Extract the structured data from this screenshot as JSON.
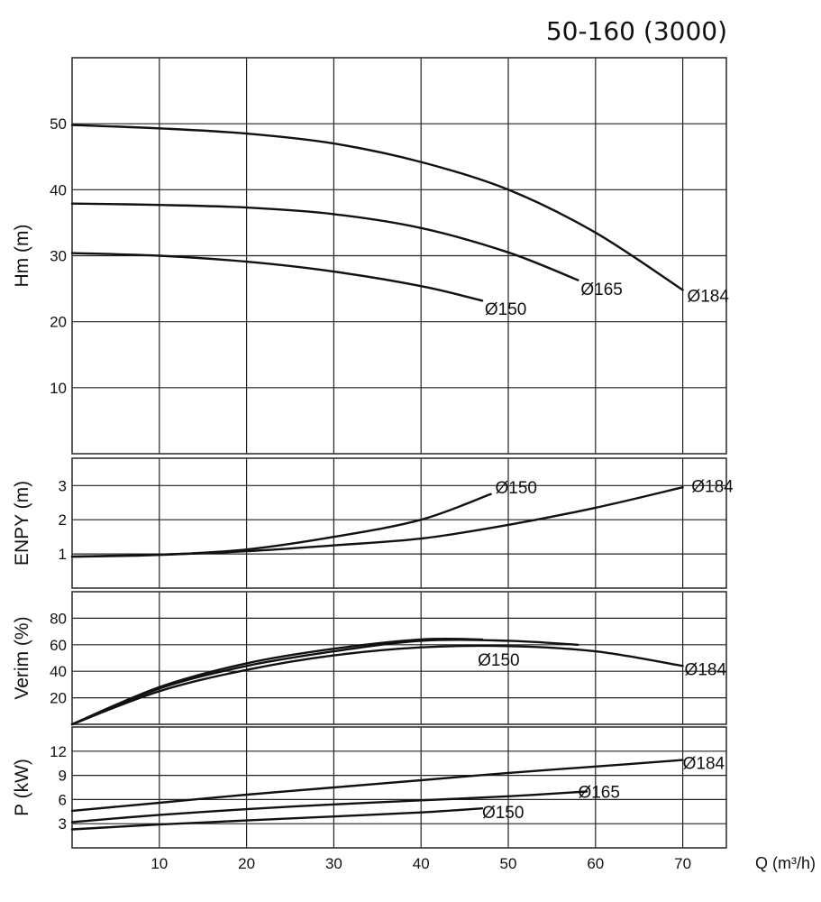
{
  "title": "50-160 (3000)",
  "chart_data": [
    {
      "type": "line",
      "ylabel": "Hm (m)",
      "xlim": [
        0,
        75
      ],
      "ylim": [
        0,
        60
      ],
      "xgrid": [
        10,
        20,
        30,
        40,
        50,
        60,
        70
      ],
      "ygrid": [
        10,
        20,
        30,
        40,
        50
      ],
      "yticks": [
        "10",
        "20",
        "30",
        "40",
        "50"
      ],
      "grid": true,
      "series": [
        {
          "name": "Ø184",
          "x": [
            0,
            10,
            20,
            30,
            40,
            50,
            60,
            70
          ],
          "y": [
            49.8,
            49.3,
            48.5,
            47,
            44.2,
            40,
            33.5,
            24.8
          ]
        },
        {
          "name": "Ø165",
          "x": [
            0,
            10,
            20,
            30,
            40,
            50,
            58
          ],
          "y": [
            37.9,
            37.7,
            37.3,
            36.3,
            34.2,
            30.5,
            26.3
          ]
        },
        {
          "name": "Ø150",
          "x": [
            0,
            10,
            20,
            30,
            40,
            47
          ],
          "y": [
            30.4,
            30,
            29.1,
            27.6,
            25.4,
            23.2
          ]
        }
      ]
    },
    {
      "type": "line",
      "ylabel": "ENPY (m)",
      "xlim": [
        0,
        75
      ],
      "ylim": [
        0,
        3.8
      ],
      "xgrid": [
        10,
        20,
        30,
        40,
        50,
        60,
        70
      ],
      "ygrid": [
        1,
        2,
        3
      ],
      "yticks": [
        "1",
        "2",
        "3"
      ],
      "grid": true,
      "series": [
        {
          "name": "Ø150",
          "x": [
            0,
            10,
            20,
            30,
            40,
            48
          ],
          "y": [
            0.92,
            0.97,
            1.13,
            1.5,
            2.0,
            2.75
          ]
        },
        {
          "name": "Ø184",
          "x": [
            0,
            10,
            20,
            30,
            40,
            50,
            60,
            70
          ],
          "y": [
            0.92,
            0.98,
            1.08,
            1.25,
            1.45,
            1.85,
            2.35,
            2.95
          ]
        }
      ]
    },
    {
      "type": "line",
      "ylabel": "Verim (%)",
      "xlim": [
        0,
        75
      ],
      "ylim": [
        0,
        100
      ],
      "xgrid": [
        10,
        20,
        30,
        40,
        50,
        60,
        70
      ],
      "ygrid": [
        20,
        40,
        60,
        80
      ],
      "yticks": [
        "20",
        "40",
        "60",
        "80"
      ],
      "grid": true,
      "series": [
        {
          "name": "Ø184",
          "x": [
            0,
            10,
            20,
            30,
            40,
            50,
            60,
            70
          ],
          "y": [
            0,
            25,
            41,
            52,
            58,
            59,
            55,
            44
          ]
        },
        {
          "name": "Ø165",
          "x": [
            0,
            10,
            20,
            30,
            40,
            50,
            58
          ],
          "y": [
            0,
            27,
            44,
            55,
            63,
            63,
            60
          ]
        },
        {
          "name": "Ø150",
          "x": [
            0,
            10,
            20,
            30,
            40,
            47
          ],
          "y": [
            0,
            28,
            46,
            57,
            64,
            64
          ]
        }
      ]
    },
    {
      "type": "line",
      "ylabel": "P (kW)",
      "xlabel": "Q (m³/h)",
      "xlim": [
        0,
        75
      ],
      "ylim": [
        0,
        15
      ],
      "xgrid": [
        10,
        20,
        30,
        40,
        50,
        60,
        70
      ],
      "ygrid": [
        3,
        6,
        9,
        12
      ],
      "yticks": [
        "3",
        "6",
        "9",
        "12"
      ],
      "xticks": [
        "10",
        "20",
        "30",
        "40",
        "50",
        "60",
        "70"
      ],
      "grid": true,
      "series": [
        {
          "name": "Ø184",
          "x": [
            0,
            10,
            20,
            30,
            40,
            50,
            60,
            70
          ],
          "y": [
            4.6,
            5.6,
            6.6,
            7.5,
            8.4,
            9.3,
            10.1,
            10.9
          ]
        },
        {
          "name": "Ø165",
          "x": [
            0,
            10,
            20,
            30,
            40,
            50,
            59
          ],
          "y": [
            3.2,
            4.1,
            4.8,
            5.4,
            5.9,
            6.4,
            7.0
          ]
        },
        {
          "name": "Ø150",
          "x": [
            0,
            10,
            20,
            30,
            40,
            47
          ],
          "y": [
            2.3,
            2.9,
            3.4,
            3.9,
            4.4,
            4.9
          ]
        }
      ]
    }
  ],
  "curve_labels": [
    {
      "text": "Ø184",
      "chart": 0,
      "x": 70.5,
      "y": 24.0
    },
    {
      "text": "Ø165",
      "chart": 0,
      "x": 58.3,
      "y": 25.0
    },
    {
      "text": "Ø150",
      "chart": 0,
      "x": 47.3,
      "y": 22.0
    },
    {
      "text": "Ø150",
      "chart": 1,
      "x": 48.5,
      "y": 2.95
    },
    {
      "text": "Ø184",
      "chart": 1,
      "x": 71.0,
      "y": 3.0
    },
    {
      "text": "Ø150",
      "chart": 2,
      "x": 46.5,
      "y": 49
    },
    {
      "text": "Ø184",
      "chart": 2,
      "x": 70.2,
      "y": 42
    },
    {
      "text": "Ø184",
      "chart": 3,
      "x": 70.0,
      "y": 10.6
    },
    {
      "text": "Ø165",
      "chart": 3,
      "x": 58.0,
      "y": 7.0
    },
    {
      "text": "Ø150",
      "chart": 3,
      "x": 47.0,
      "y": 4.5
    }
  ]
}
